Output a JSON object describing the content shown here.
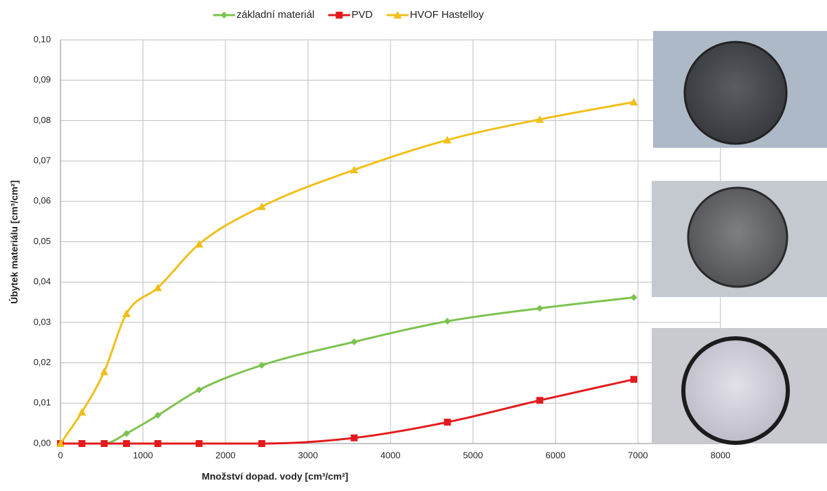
{
  "chart_data": {
    "type": "line",
    "x_label": "Množství dopad. vody [cm³/cm²]",
    "y_label": "Úbytek materiálu [cm³/cm²]",
    "x": [
      0,
      260,
      530,
      800,
      1180,
      1680,
      2440,
      3560,
      4690,
      5810,
      6950
    ],
    "series": [
      {
        "name": "základní materiál",
        "color": "#7dc24f",
        "marker": "diamond",
        "values": [
          0,
          0,
          0,
          0.0025,
          0.007,
          0.0133,
          0.0194,
          0.0252,
          0.0303,
          0.0335,
          0.0362
        ]
      },
      {
        "name": "PVD",
        "color": "#e31a1c",
        "marker": "square",
        "values": [
          0,
          0,
          0,
          0,
          0,
          0,
          0,
          0.0014,
          0.0053,
          0.0107,
          0.0159
        ]
      },
      {
        "name": "HVOF Hastelloy",
        "color": "#f0bf1a",
        "marker": "triangle",
        "values": [
          0,
          0.0078,
          0.0178,
          0.0322,
          0.0386,
          0.0494,
          0.0587,
          0.0678,
          0.0752,
          0.0803,
          0.0846
        ]
      }
    ],
    "xlim": [
      0,
      8000
    ],
    "xticks": [
      0,
      1000,
      2000,
      3000,
      4000,
      5000,
      6000,
      7000,
      8000
    ],
    "ylim": [
      0,
      0.1
    ],
    "yticks": [
      {
        "value": 0,
        "label": "0,00"
      },
      {
        "value": 0.01,
        "label": "0,01"
      },
      {
        "value": 0.02,
        "label": "0,02"
      },
      {
        "value": 0.03,
        "label": "0,03"
      },
      {
        "value": 0.04,
        "label": "0,04"
      },
      {
        "value": 0.05,
        "label": "0,05"
      },
      {
        "value": 0.06,
        "label": "0,06"
      },
      {
        "value": 0.07,
        "label": "0,07"
      },
      {
        "value": 0.08,
        "label": "0,08"
      },
      {
        "value": 0.09,
        "label": "0,09"
      },
      {
        "value": 0.1,
        "label": "0,10"
      }
    ],
    "grid": true,
    "legend": "top"
  }
}
